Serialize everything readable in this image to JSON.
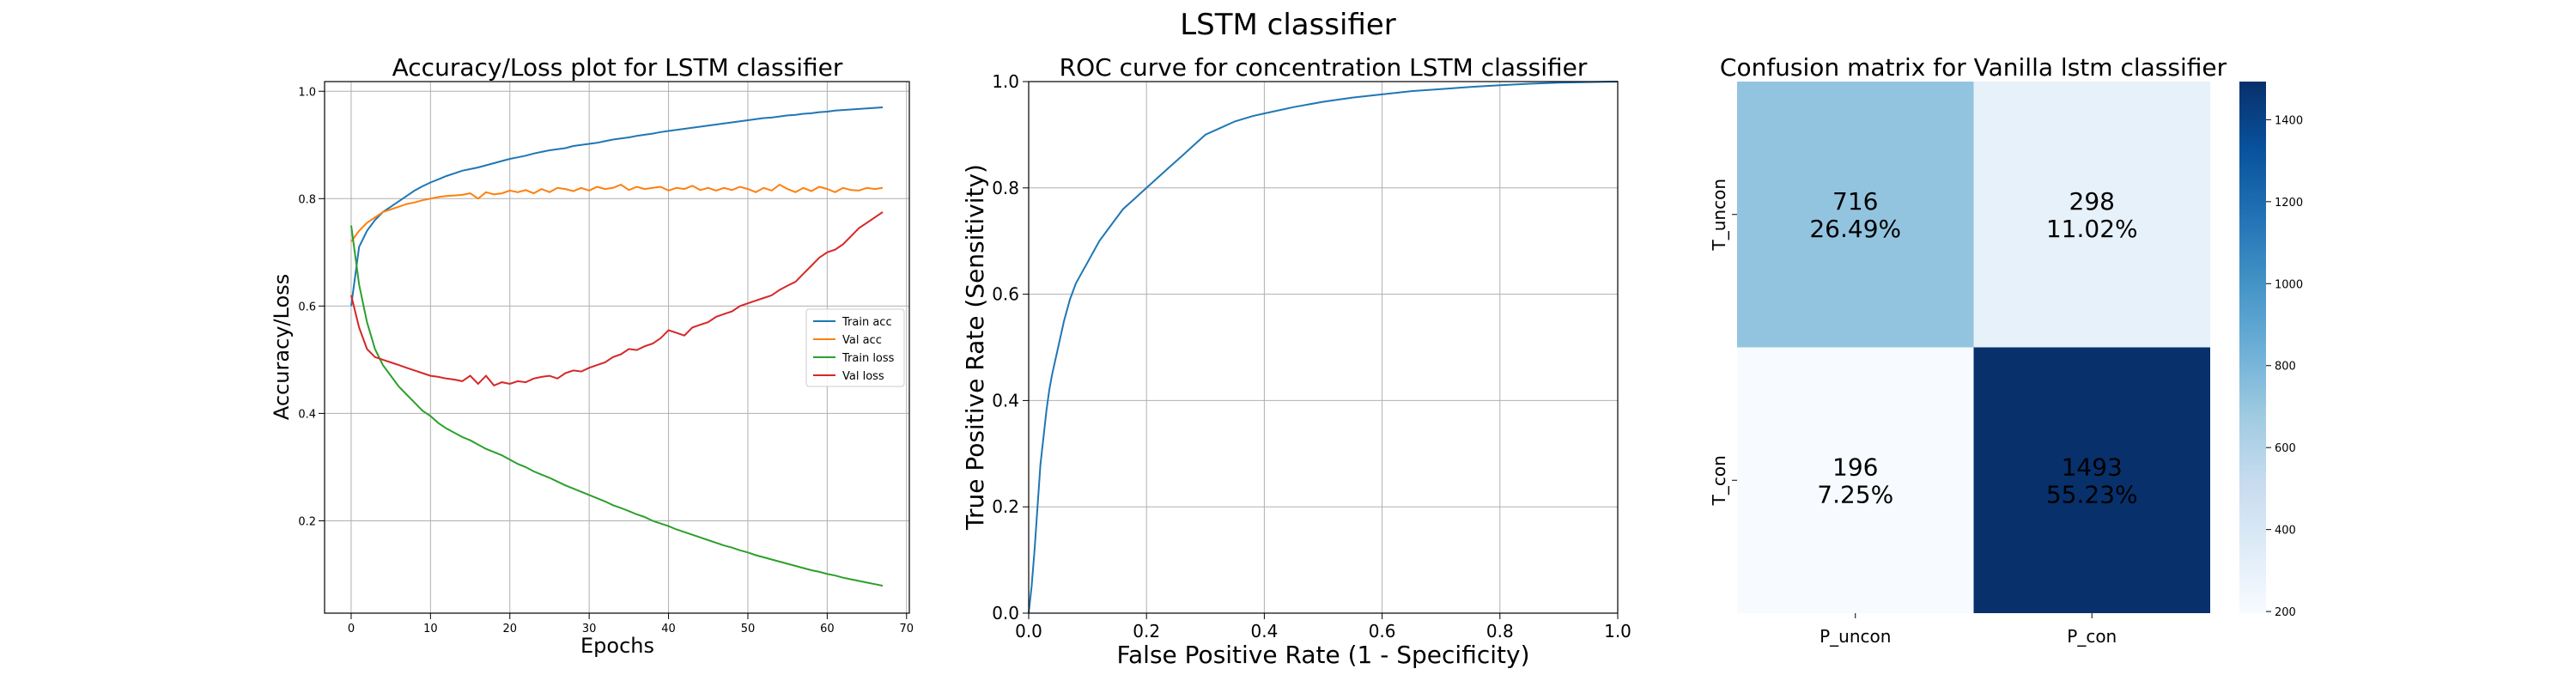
{
  "figure": {
    "title": "LSTM classifier"
  },
  "chart_data": [
    {
      "type": "line",
      "title": "Accuracy/Loss plot for LSTM classifier",
      "xlabel": "Epochs",
      "ylabel": "Accuracy/Loss",
      "xlim": [
        -3.35,
        70.35
      ],
      "ylim": [
        0.028,
        1.018
      ],
      "xticks": [
        0,
        10,
        20,
        30,
        40,
        50,
        60,
        70
      ],
      "yticks": [
        0.2,
        0.4,
        0.6,
        0.8,
        1.0
      ],
      "grid": true,
      "legend_position": "center-right",
      "x": [
        0,
        1,
        2,
        3,
        4,
        5,
        6,
        7,
        8,
        9,
        10,
        11,
        12,
        13,
        14,
        15,
        16,
        17,
        18,
        19,
        20,
        21,
        22,
        23,
        24,
        25,
        26,
        27,
        28,
        29,
        30,
        31,
        32,
        33,
        34,
        35,
        36,
        37,
        38,
        39,
        40,
        41,
        42,
        43,
        44,
        45,
        46,
        47,
        48,
        49,
        50,
        51,
        52,
        53,
        54,
        55,
        56,
        57,
        58,
        59,
        60,
        61,
        62,
        63,
        64,
        65,
        66,
        67
      ],
      "series": [
        {
          "name": "Train acc",
          "color": "#1f77b4",
          "values": [
            0.6,
            0.71,
            0.74,
            0.76,
            0.775,
            0.785,
            0.795,
            0.805,
            0.815,
            0.823,
            0.83,
            0.836,
            0.842,
            0.847,
            0.852,
            0.855,
            0.858,
            0.862,
            0.866,
            0.87,
            0.874,
            0.877,
            0.88,
            0.884,
            0.887,
            0.89,
            0.892,
            0.894,
            0.898,
            0.9,
            0.902,
            0.904,
            0.907,
            0.91,
            0.912,
            0.914,
            0.917,
            0.919,
            0.921,
            0.924,
            0.926,
            0.928,
            0.93,
            0.932,
            0.934,
            0.936,
            0.938,
            0.94,
            0.942,
            0.944,
            0.946,
            0.948,
            0.95,
            0.951,
            0.953,
            0.955,
            0.956,
            0.958,
            0.959,
            0.961,
            0.962,
            0.964,
            0.965,
            0.966,
            0.967,
            0.968,
            0.969,
            0.97
          ]
        },
        {
          "name": "Val acc",
          "color": "#ff7f0e",
          "values": [
            0.72,
            0.74,
            0.755,
            0.765,
            0.775,
            0.78,
            0.785,
            0.79,
            0.793,
            0.797,
            0.8,
            0.803,
            0.805,
            0.806,
            0.807,
            0.81,
            0.8,
            0.812,
            0.808,
            0.81,
            0.815,
            0.812,
            0.816,
            0.81,
            0.818,
            0.812,
            0.82,
            0.818,
            0.814,
            0.82,
            0.815,
            0.822,
            0.818,
            0.82,
            0.826,
            0.816,
            0.822,
            0.818,
            0.82,
            0.822,
            0.815,
            0.82,
            0.818,
            0.824,
            0.816,
            0.82,
            0.815,
            0.82,
            0.816,
            0.822,
            0.818,
            0.812,
            0.82,
            0.815,
            0.826,
            0.818,
            0.812,
            0.82,
            0.814,
            0.822,
            0.818,
            0.812,
            0.82,
            0.816,
            0.815,
            0.82,
            0.818,
            0.82
          ]
        },
        {
          "name": "Train loss",
          "color": "#2ca02c",
          "values": [
            0.75,
            0.64,
            0.57,
            0.52,
            0.49,
            0.47,
            0.45,
            0.435,
            0.42,
            0.405,
            0.395,
            0.382,
            0.372,
            0.364,
            0.356,
            0.35,
            0.342,
            0.334,
            0.328,
            0.322,
            0.314,
            0.306,
            0.3,
            0.292,
            0.286,
            0.28,
            0.273,
            0.266,
            0.26,
            0.254,
            0.248,
            0.242,
            0.236,
            0.229,
            0.224,
            0.218,
            0.212,
            0.207,
            0.2,
            0.195,
            0.19,
            0.184,
            0.179,
            0.174,
            0.169,
            0.164,
            0.159,
            0.154,
            0.15,
            0.145,
            0.141,
            0.136,
            0.132,
            0.128,
            0.124,
            0.12,
            0.116,
            0.112,
            0.108,
            0.105,
            0.101,
            0.098,
            0.094,
            0.091,
            0.088,
            0.085,
            0.082,
            0.079
          ]
        },
        {
          "name": "Val loss",
          "color": "#d62728",
          "values": [
            0.62,
            0.56,
            0.52,
            0.505,
            0.5,
            0.495,
            0.49,
            0.485,
            0.48,
            0.475,
            0.47,
            0.468,
            0.465,
            0.463,
            0.46,
            0.47,
            0.455,
            0.47,
            0.452,
            0.458,
            0.455,
            0.46,
            0.458,
            0.465,
            0.468,
            0.47,
            0.465,
            0.475,
            0.48,
            0.478,
            0.485,
            0.49,
            0.495,
            0.505,
            0.51,
            0.52,
            0.518,
            0.525,
            0.53,
            0.54,
            0.555,
            0.55,
            0.545,
            0.56,
            0.565,
            0.57,
            0.58,
            0.585,
            0.59,
            0.6,
            0.605,
            0.61,
            0.615,
            0.62,
            0.63,
            0.638,
            0.645,
            0.66,
            0.675,
            0.69,
            0.7,
            0.705,
            0.715,
            0.73,
            0.745,
            0.755,
            0.765,
            0.775
          ]
        }
      ]
    },
    {
      "type": "line",
      "title": "ROC curve for concentration LSTM classifier",
      "xlabel": "False Positive Rate (1 - Specificity)",
      "ylabel": "True Positive Rate (Sensitivity)",
      "xlim": [
        0.0,
        1.0
      ],
      "ylim": [
        0.0,
        1.0
      ],
      "xticks": [
        0.0,
        0.2,
        0.4,
        0.6,
        0.8,
        1.0
      ],
      "yticks": [
        0.0,
        0.2,
        0.4,
        0.6,
        0.8,
        1.0
      ],
      "grid": true,
      "series": [
        {
          "name": "",
          "color": "#1f77b4",
          "x": [
            0.0,
            0.005,
            0.01,
            0.015,
            0.02,
            0.025,
            0.03,
            0.035,
            0.04,
            0.05,
            0.06,
            0.07,
            0.08,
            0.09,
            0.1,
            0.12,
            0.14,
            0.16,
            0.18,
            0.2,
            0.22,
            0.24,
            0.26,
            0.28,
            0.3,
            0.32,
            0.35,
            0.38,
            0.4,
            0.45,
            0.5,
            0.55,
            0.6,
            0.65,
            0.7,
            0.75,
            0.8,
            0.85,
            0.9,
            0.95,
            1.0
          ],
          "values": [
            0.0,
            0.05,
            0.12,
            0.2,
            0.28,
            0.33,
            0.38,
            0.42,
            0.45,
            0.5,
            0.55,
            0.59,
            0.62,
            0.64,
            0.66,
            0.7,
            0.73,
            0.76,
            0.78,
            0.8,
            0.82,
            0.84,
            0.86,
            0.88,
            0.9,
            0.91,
            0.925,
            0.935,
            0.94,
            0.952,
            0.962,
            0.97,
            0.976,
            0.982,
            0.986,
            0.99,
            0.993,
            0.996,
            0.998,
            0.999,
            1.0
          ]
        }
      ]
    },
    {
      "type": "heatmap",
      "title": "Confusion matrix for Vanilla lstm classifier",
      "x_categories": [
        "P_uncon",
        "P_con"
      ],
      "y_categories": [
        "T_uncon",
        "T_con"
      ],
      "values": [
        [
          716,
          298
        ],
        [
          196,
          1493
        ]
      ],
      "cell_labels": [
        [
          "716\n26.49%",
          "298\n11.02%"
        ],
        [
          "196\n7.25%",
          "1493\n55.23%"
        ]
      ],
      "colormap": "Blues",
      "colorbar_range": [
        196,
        1493
      ],
      "colorbar_ticks": [
        200,
        400,
        600,
        800,
        1000,
        1200,
        1400
      ]
    }
  ]
}
